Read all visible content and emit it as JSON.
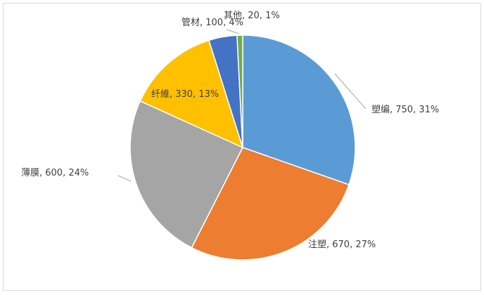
{
  "chart_data": {
    "type": "pie",
    "title": "",
    "start_angle_deg": 0,
    "direction": "clockwise",
    "slices": [
      {
        "label": "塑编",
        "value": 750,
        "percent": "31%",
        "color": "#5B9BD5"
      },
      {
        "label": "注塑",
        "value": 670,
        "percent": "27%",
        "color": "#ED7D31"
      },
      {
        "label": "薄膜",
        "value": 600,
        "percent": "24%",
        "color": "#A5A5A5"
      },
      {
        "label": "纤維",
        "value": 330,
        "percent": "13%",
        "color": "#FFC000"
      },
      {
        "label": "管材",
        "value": 100,
        "percent": "4%",
        "color": "#4472C4"
      },
      {
        "label": "其他",
        "value": 20,
        "percent": "1%",
        "color": "#70AD47"
      }
    ],
    "data_labels": "category, value, percent",
    "legend": "none"
  }
}
